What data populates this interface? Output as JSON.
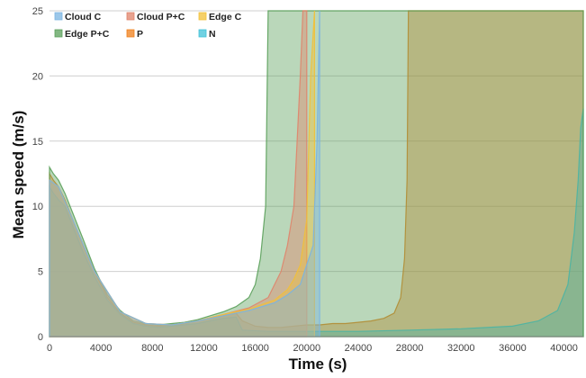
{
  "chart_data": {
    "type": "area",
    "title": "",
    "xlabel": "Time (s)",
    "ylabel": "Mean speed (m/s)",
    "xlim": [
      0,
      41500
    ],
    "ylim": [
      0,
      25
    ],
    "xticks": [
      0,
      4000,
      8000,
      12000,
      16000,
      20000,
      24000,
      28000,
      32000,
      36000,
      40000
    ],
    "yticks": [
      0,
      5,
      10,
      15,
      20,
      25
    ],
    "grid": "horizontal",
    "legend_placement": "top-left",
    "series": [
      {
        "name": "P",
        "color": "#f07f1a",
        "x": [
          0,
          300,
          700,
          1200,
          1800,
          2600,
          3500,
          4500,
          5500,
          6500,
          7500,
          8500,
          9500,
          10500,
          11500,
          12500,
          13500,
          14500,
          15000,
          16000,
          17000,
          18000,
          19000,
          20000,
          21000,
          22000,
          23000,
          24000,
          25000,
          26000,
          26800,
          27300,
          27600,
          27800,
          27900,
          41500
        ],
        "y": [
          12.5,
          12,
          11.5,
          10.5,
          9,
          7,
          5,
          3,
          1.8,
          1.1,
          0.9,
          0.8,
          0.9,
          1.0,
          1.2,
          1.4,
          1.6,
          1.8,
          1.2,
          0.8,
          0.7,
          0.7,
          0.8,
          0.9,
          0.9,
          1.0,
          1.0,
          1.1,
          1.2,
          1.4,
          1.8,
          3.0,
          6.0,
          12.0,
          25,
          25
        ]
      },
      {
        "name": "N",
        "color": "#40c2d8",
        "x": [
          0,
          300,
          700,
          1200,
          1800,
          2600,
          3500,
          4500,
          5500,
          6500,
          7500,
          8500,
          9500,
          10500,
          11500,
          12500,
          13500,
          14500,
          15000,
          17000,
          20000,
          24000,
          28000,
          32000,
          36000,
          38000,
          39500,
          40300,
          40800,
          41100,
          41300,
          41500
        ],
        "y": [
          11.5,
          11,
          10.5,
          10,
          8.5,
          6.5,
          4.6,
          2.8,
          1.7,
          1.0,
          0.8,
          0.7,
          0.8,
          0.9,
          1.0,
          1.2,
          1.4,
          1.5,
          0.5,
          0.4,
          0.4,
          0.4,
          0.5,
          0.6,
          0.8,
          1.2,
          2.0,
          4.0,
          8.0,
          12.0,
          16.0,
          17.5
        ]
      },
      {
        "name": "Edge P+C",
        "color": "#5aa05a",
        "x": [
          0,
          300,
          700,
          1200,
          1800,
          2600,
          3500,
          4500,
          5500,
          6500,
          7500,
          8500,
          9500,
          10500,
          11500,
          12500,
          13500,
          14500,
          15500,
          16000,
          16400,
          16800,
          17000,
          41500
        ],
        "y": [
          13,
          12.5,
          12,
          11,
          9.5,
          7.5,
          5.2,
          3.2,
          2.0,
          1.2,
          1.0,
          0.9,
          1.0,
          1.1,
          1.3,
          1.6,
          1.9,
          2.3,
          3.0,
          4.0,
          6.0,
          10.0,
          25,
          25
        ]
      },
      {
        "name": "Cloud P+C",
        "color": "#e0836a",
        "x": [
          0,
          700,
          1800,
          3500,
          5500,
          7500,
          9500,
          11500,
          13500,
          15500,
          17000,
          18000,
          18500,
          19000,
          19300,
          19500,
          19700,
          20000
        ],
        "y": [
          12,
          11.5,
          9,
          5,
          1.9,
          1.0,
          0.9,
          1.2,
          1.7,
          2.2,
          3.0,
          5.0,
          7.0,
          10.0,
          16.0,
          20.0,
          25,
          25
        ]
      },
      {
        "name": "Edge C",
        "color": "#f2c037",
        "x": [
          0,
          700,
          1800,
          3500,
          5500,
          7500,
          9500,
          11500,
          13500,
          15500,
          17500,
          18500,
          19000,
          19500,
          20000,
          20300,
          20600
        ],
        "y": [
          12,
          11.5,
          9,
          5,
          1.9,
          1.0,
          0.9,
          1.2,
          1.7,
          2.1,
          2.8,
          3.6,
          4.4,
          5.5,
          9.0,
          20.0,
          25
        ]
      },
      {
        "name": "Cloud C",
        "color": "#7ab4e2",
        "x": [
          0,
          700,
          1800,
          3500,
          5500,
          7500,
          9500,
          11500,
          13500,
          15500,
          17500,
          18500,
          19500,
          20500,
          20800,
          21000
        ],
        "y": [
          12,
          11.5,
          9,
          5,
          1.9,
          1.0,
          0.9,
          1.2,
          1.6,
          2.0,
          2.6,
          3.2,
          4.0,
          7.0,
          15.0,
          25
        ]
      }
    ],
    "legend": [
      {
        "name": "Cloud C",
        "color": "#7ab4e2"
      },
      {
        "name": "Cloud P+C",
        "color": "#e0836a"
      },
      {
        "name": "Edge C",
        "color": "#f2c037"
      },
      {
        "name": "Edge P+C",
        "color": "#5aa05a"
      },
      {
        "name": "P",
        "color": "#f07f1a"
      },
      {
        "name": "N",
        "color": "#40c2d8"
      }
    ]
  }
}
